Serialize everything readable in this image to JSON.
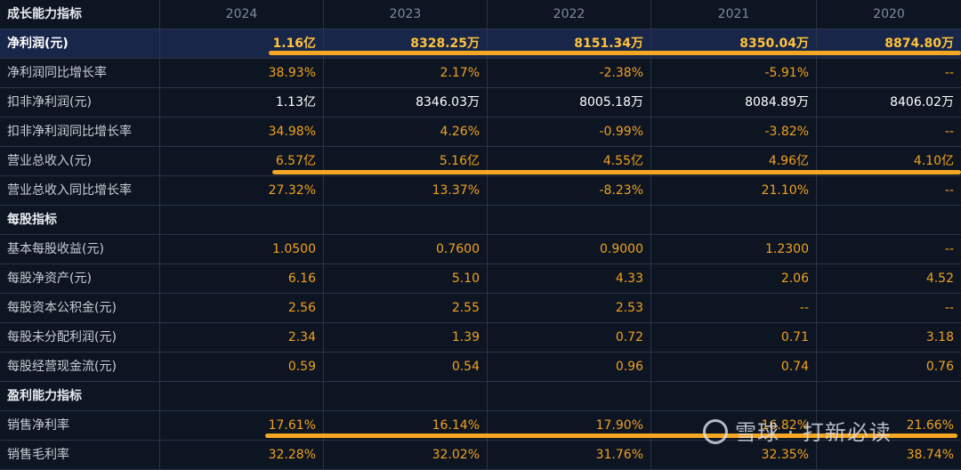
{
  "header": {
    "title": "成长能力指标",
    "years": [
      "2024",
      "2023",
      "2022",
      "2021",
      "2020"
    ]
  },
  "rows": [
    {
      "label": "净利润(元)",
      "values": [
        "1.16亿",
        "8328.25万",
        "8151.34万",
        "8350.04万",
        "8874.80万"
      ]
    },
    {
      "label": "净利润同比增长率",
      "values": [
        "38.93%",
        "2.17%",
        "-2.38%",
        "-5.91%",
        "--"
      ]
    },
    {
      "label": "扣非净利润(元)",
      "values": [
        "1.13亿",
        "8346.03万",
        "8005.18万",
        "8084.89万",
        "8406.02万"
      ]
    },
    {
      "label": "扣非净利润同比增长率",
      "values": [
        "34.98%",
        "4.26%",
        "-0.99%",
        "-3.82%",
        "--"
      ]
    },
    {
      "label": "营业总收入(元)",
      "values": [
        "6.57亿",
        "5.16亿",
        "4.55亿",
        "4.96亿",
        "4.10亿"
      ]
    },
    {
      "label": "营业总收入同比增长率",
      "values": [
        "27.32%",
        "13.37%",
        "-8.23%",
        "21.10%",
        "--"
      ]
    },
    {
      "label": "每股指标",
      "values": [
        "",
        "",
        "",
        "",
        ""
      ]
    },
    {
      "label": "基本每股收益(元)",
      "values": [
        "1.0500",
        "0.7600",
        "0.9000",
        "1.2300",
        "--"
      ]
    },
    {
      "label": "每股净资产(元)",
      "values": [
        "6.16",
        "5.10",
        "4.33",
        "2.06",
        "4.52"
      ]
    },
    {
      "label": "每股资本公积金(元)",
      "values": [
        "2.56",
        "2.55",
        "2.53",
        "--",
        "--"
      ]
    },
    {
      "label": "每股未分配利润(元)",
      "values": [
        "2.34",
        "1.39",
        "0.72",
        "0.71",
        "3.18"
      ]
    },
    {
      "label": "每股经营现金流(元)",
      "values": [
        "0.59",
        "0.54",
        "0.96",
        "0.74",
        "0.76"
      ]
    },
    {
      "label": "盈利能力指标",
      "values": [
        "",
        "",
        "",
        "",
        ""
      ]
    },
    {
      "label": "销售净利率",
      "values": [
        "17.61%",
        "16.14%",
        "17.90%",
        "16.82%",
        "21.66%"
      ]
    },
    {
      "label": "销售毛利率",
      "values": [
        "32.28%",
        "32.02%",
        "31.76%",
        "32.35%",
        "38.74%"
      ]
    }
  ],
  "watermark": "雪球 · 打新必读",
  "colors": {
    "background": "#0d1522",
    "value": "#f2a11e",
    "underline": "#f5a623",
    "highlight_row": "#18264a"
  }
}
